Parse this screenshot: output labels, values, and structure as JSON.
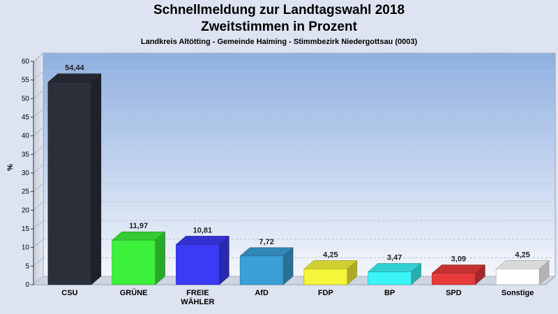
{
  "chart_data": {
    "type": "bar",
    "title": "Schnellmeldung zur Landtagswahl 2018",
    "subtitle": "Zweitstimmen in Prozent",
    "subsubtitle": "Landkreis Altötting - Gemeinde Haiming - Stimmbezirk Niedergottsau (0003)",
    "ylabel": "%",
    "ylim": [
      0,
      60
    ],
    "yticks": [
      0,
      5,
      10,
      15,
      20,
      25,
      30,
      35,
      40,
      45,
      50,
      55,
      60
    ],
    "categories": [
      "CSU",
      "GRÜNE",
      "FREIE\nWÄHLER",
      "AfD",
      "FDP",
      "BP",
      "SPD",
      "Sonstige"
    ],
    "values": [
      54.44,
      11.97,
      10.81,
      7.72,
      4.25,
      3.47,
      3.09,
      4.25
    ],
    "value_labels": [
      "54,44",
      "11,97",
      "10,81",
      "7,72",
      "4,25",
      "3,47",
      "3,09",
      "4,25"
    ],
    "colors": [
      "#2b2f3a",
      "#3cf03c",
      "#3b3bf5",
      "#3a9fd6",
      "#f5f53a",
      "#3af5f5",
      "#e83a3a",
      "#ffffff"
    ],
    "grid": true
  }
}
